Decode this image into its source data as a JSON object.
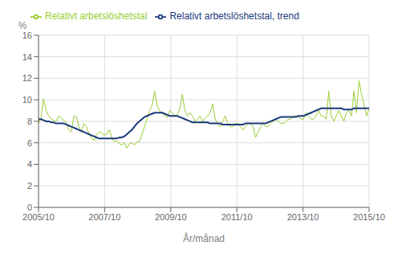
{
  "chart_data": {
    "type": "line",
    "title": "",
    "xlabel": "År/månad",
    "ylabel": "%",
    "x": [
      0,
      1,
      2,
      3,
      4,
      5,
      6,
      7,
      8,
      9,
      10,
      11,
      12,
      13,
      14,
      15,
      16,
      17,
      18,
      19,
      20,
      21,
      22,
      23,
      24,
      25,
      26,
      27,
      28,
      29,
      30,
      31,
      32,
      33,
      34,
      35,
      36,
      37,
      38,
      39,
      40,
      41,
      42,
      43,
      44,
      45,
      46,
      47,
      48,
      49,
      50,
      51,
      52,
      53,
      54,
      55,
      56,
      57,
      58,
      59,
      60,
      61,
      62,
      63,
      64,
      65,
      66,
      67,
      68,
      69,
      70,
      71,
      72,
      73,
      74,
      75,
      76,
      77,
      78,
      79,
      80,
      81,
      82,
      83,
      84,
      85,
      86,
      87,
      88,
      89,
      90,
      91,
      92,
      93,
      94,
      95,
      96,
      97,
      98,
      99,
      100,
      101,
      102,
      103,
      104,
      105,
      106,
      107,
      108,
      109,
      110,
      111,
      112,
      113,
      114,
      115,
      116,
      117,
      118,
      119,
      120,
      121,
      122,
      123,
      124,
      125,
      126,
      127,
      128,
      129,
      130,
      131
    ],
    "xlim": [
      0,
      131
    ],
    "xticks": [
      {
        "value": 0,
        "label": "2005/10"
      },
      {
        "value": 26.2,
        "label": "2007/10"
      },
      {
        "value": 52.4,
        "label": "2009/10"
      },
      {
        "value": 78.6,
        "label": "2011/10"
      },
      {
        "value": 104.8,
        "label": "2013/10"
      },
      {
        "value": 131,
        "label": "2015/10"
      }
    ],
    "ylim": [
      0,
      16
    ],
    "yticks": [
      0,
      2,
      4,
      6,
      8,
      10,
      12,
      14,
      16
    ],
    "grid": true,
    "legend": "upper left",
    "series": [
      {
        "name": "Relativt arbetslöshetstal",
        "color": "#99cc33",
        "values": [
          7.8,
          8.3,
          10.1,
          9.0,
          8.5,
          8.2,
          8.1,
          8.0,
          8.5,
          8.3,
          8.1,
          7.9,
          7.2,
          7.0,
          8.5,
          8.4,
          7.5,
          7.0,
          7.8,
          7.5,
          6.8,
          6.5,
          6.2,
          6.8,
          7.0,
          6.9,
          6.7,
          6.8,
          7.2,
          6.5,
          6.1,
          6.2,
          5.9,
          5.8,
          6.0,
          5.5,
          5.9,
          6.0,
          5.8,
          6.1,
          6.1,
          6.8,
          7.5,
          8.2,
          9.0,
          9.5,
          10.8,
          9.5,
          9.0,
          8.8,
          8.5,
          8.4,
          9.0,
          8.8,
          8.5,
          8.6,
          9.2,
          10.5,
          9.0,
          8.5,
          8.8,
          8.5,
          8.0,
          8.2,
          8.5,
          8.0,
          8.3,
          8.5,
          8.8,
          9.6,
          8.2,
          7.8,
          7.5,
          8.0,
          8.5,
          7.8,
          7.5,
          7.5,
          7.8,
          7.8,
          7.5,
          7.2,
          7.5,
          7.8,
          7.8,
          7.5,
          6.5,
          7.0,
          7.5,
          7.8,
          7.5,
          7.5,
          7.8,
          8.0,
          8.2,
          8.0,
          7.8,
          7.8,
          8.0,
          8.2,
          8.2,
          8.5,
          8.5,
          8.5,
          8.2,
          8.2,
          8.8,
          8.5,
          8.2,
          8.2,
          8.5,
          9.0,
          8.5,
          8.5,
          8.2,
          10.8,
          8.5,
          8.0,
          8.5,
          9.0,
          8.5,
          8.0,
          8.8,
          9.0,
          8.5,
          10.8,
          8.8,
          11.8,
          10.5,
          9.5,
          8.5,
          9.2
        ]
      },
      {
        "name": "Relativt arbetslöshetstal, trend",
        "color": "#1a3a7a",
        "values": [
          8.2,
          8.2,
          8.1,
          8.0,
          8.0,
          7.9,
          7.9,
          7.8,
          7.8,
          7.8,
          7.8,
          7.7,
          7.6,
          7.5,
          7.4,
          7.3,
          7.2,
          7.1,
          7.0,
          6.9,
          6.8,
          6.7,
          6.6,
          6.5,
          6.4,
          6.4,
          6.4,
          6.4,
          6.4,
          6.4,
          6.4,
          6.4,
          6.5,
          6.5,
          6.6,
          6.8,
          7.0,
          7.2,
          7.5,
          7.8,
          8.0,
          8.2,
          8.4,
          8.5,
          8.6,
          8.7,
          8.8,
          8.8,
          8.8,
          8.8,
          8.7,
          8.6,
          8.5,
          8.5,
          8.5,
          8.5,
          8.4,
          8.3,
          8.2,
          8.1,
          8.0,
          7.9,
          7.9,
          7.9,
          7.9,
          7.9,
          7.9,
          7.9,
          7.8,
          7.8,
          7.8,
          7.8,
          7.8,
          7.7,
          7.7,
          7.7,
          7.7,
          7.7,
          7.7,
          7.7,
          7.7,
          7.7,
          7.8,
          7.8,
          7.8,
          7.8,
          7.8,
          7.8,
          7.8,
          7.8,
          7.8,
          7.9,
          8.0,
          8.1,
          8.2,
          8.3,
          8.4,
          8.4,
          8.4,
          8.4,
          8.4,
          8.4,
          8.4,
          8.5,
          8.5,
          8.5,
          8.6,
          8.7,
          8.8,
          8.9,
          9.0,
          9.1,
          9.2,
          9.2,
          9.2,
          9.2,
          9.2,
          9.2,
          9.2,
          9.2,
          9.2,
          9.1,
          9.1,
          9.1,
          9.1,
          9.2,
          9.2,
          9.2,
          9.2,
          9.2,
          9.2,
          9.2
        ]
      }
    ]
  }
}
